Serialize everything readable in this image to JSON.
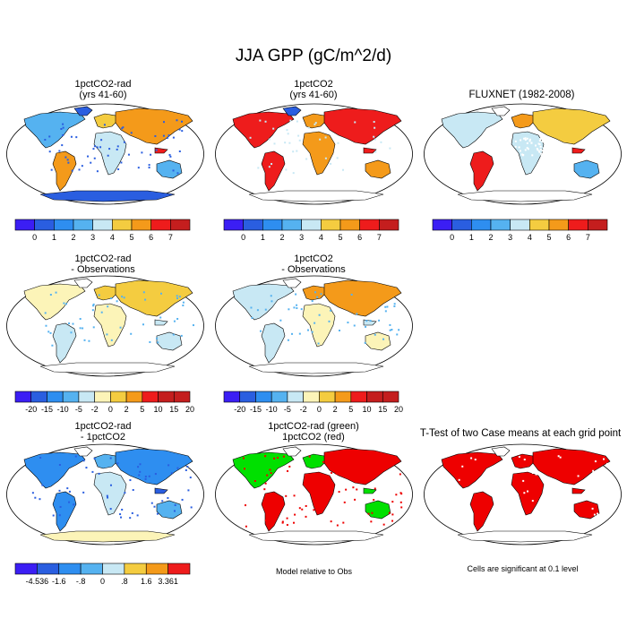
{
  "figure": {
    "title": "JJA GPP (gC/m^2/d)"
  },
  "colors": {
    "abs": [
      "#3b1ef4",
      "#2a5ee0",
      "#2e8ef0",
      "#55b2f0",
      "#c8e8f4",
      "#f4cc40",
      "#f49a1a",
      "#ee1c1c",
      "#c41e1e"
    ],
    "diff": [
      "#3b1ef4",
      "#2a5ee0",
      "#2e8ef0",
      "#55b2f0",
      "#c8e8f4",
      "#fcf4b8",
      "#f4cc40",
      "#f49a1a",
      "#ee1c1c",
      "#c41e1e"
    ],
    "continent_outline": "#000000",
    "significance": "#ee0000",
    "green_case": "#00e000",
    "red_case": "#ee0000"
  },
  "panels": [
    {
      "id": "p1",
      "title": "1pctCO2-rad\n(yrs 41-60)",
      "colorbar": "abs"
    },
    {
      "id": "p2",
      "title": "1pctCO2\n(yrs 41-60)",
      "colorbar": "abs"
    },
    {
      "id": "p3",
      "title": "FLUXNET (1982-2008)",
      "colorbar": "abs"
    },
    {
      "id": "p4",
      "title": "1pctCO2-rad\n- Observations",
      "colorbar": "diff"
    },
    {
      "id": "p5",
      "title": "1pctCO2\n- Observations",
      "colorbar": "diff"
    },
    {
      "id": "p6",
      "title": "1pctCO2-rad\n- 1pctCO2",
      "colorbar": "diff2"
    },
    {
      "id": "p7",
      "title": "1pctCO2-rad (green)\n1pctCO2 (red)",
      "note": "Model relative to Obs"
    },
    {
      "id": "p8",
      "title": "T-Test of two Case means at each grid point",
      "note": "Cells are significant at 0.1 level"
    }
  ],
  "colorbars": {
    "abs": {
      "labels": [
        "0",
        "1",
        "2",
        "3",
        "4",
        "5",
        "6",
        "7"
      ]
    },
    "diff": {
      "labels": [
        "-20",
        "-15",
        "-10",
        "-5",
        "-2",
        "0",
        "2",
        "5",
        "10",
        "15",
        "20"
      ]
    },
    "diff2": {
      "labels": [
        "-4.536",
        "-1.6",
        ".-8",
        "0",
        ".8",
        "1.6",
        "3.361"
      ],
      "labels_fixed": [
        "-4.536",
        "-1.6",
        "-.8",
        "0",
        ".8",
        "1.6",
        "3.361"
      ]
    }
  }
}
